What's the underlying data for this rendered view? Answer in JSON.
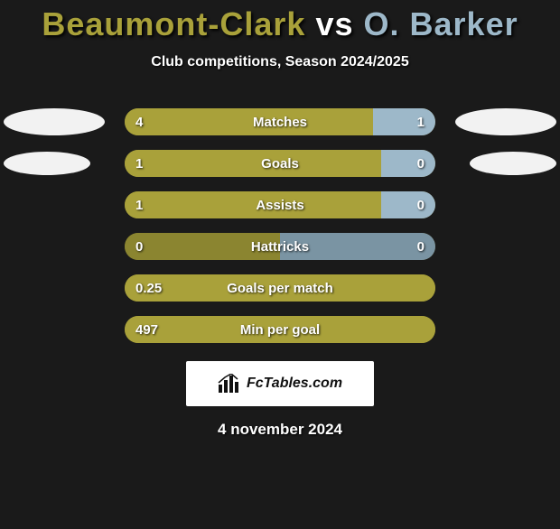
{
  "title": {
    "player1": "Beaumont-Clark",
    "vs": "vs",
    "player2": "O. Barker",
    "player1_color": "#a9a13a",
    "player2_color": "#9db8c9"
  },
  "subtitle": "Club competitions, Season 2024/2025",
  "bar": {
    "track_width": 344,
    "left_color": "#a9a13a",
    "right_color": "#9db8c9",
    "left_muted": "#8b8530",
    "right_muted": "#7a94a3"
  },
  "ellipse": {
    "large_w": 112,
    "large_h": 30,
    "small_w": 96,
    "small_h": 26,
    "color": "#f2f2f2"
  },
  "rows": [
    {
      "stat": "Matches",
      "left": "4",
      "right": "1",
      "left_pct": 80,
      "right_pct": 20,
      "show_ellipses": true,
      "ellipse_size": "large"
    },
    {
      "stat": "Goals",
      "left": "1",
      "right": "0",
      "left_pct": 100,
      "right_pct": 0,
      "show_ellipses": true,
      "ellipse_size": "small",
      "right_stub": true
    },
    {
      "stat": "Assists",
      "left": "1",
      "right": "0",
      "left_pct": 100,
      "right_pct": 0,
      "show_ellipses": false,
      "right_stub": true
    },
    {
      "stat": "Hattricks",
      "left": "0",
      "right": "0",
      "left_pct": 50,
      "right_pct": 50,
      "show_ellipses": false,
      "muted": true
    },
    {
      "stat": "Goals per match",
      "left": "0.25",
      "right": "",
      "left_pct": 100,
      "right_pct": 0,
      "show_ellipses": false
    },
    {
      "stat": "Min per goal",
      "left": "497",
      "right": "",
      "left_pct": 100,
      "right_pct": 0,
      "show_ellipses": false
    }
  ],
  "footer": {
    "site": "FcTables.com"
  },
  "date": "4 november 2024"
}
